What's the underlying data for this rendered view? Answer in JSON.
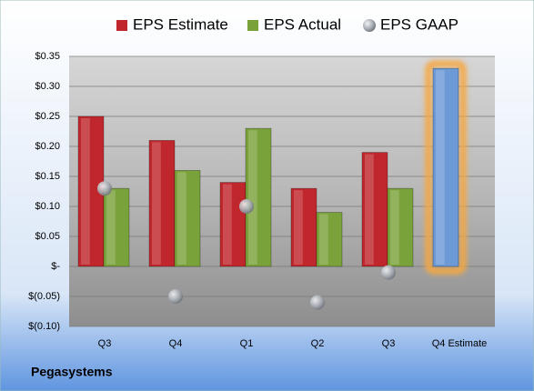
{
  "chart_data": {
    "type": "bar",
    "title": "Pegasystems",
    "categories": [
      "Q3",
      "Q4",
      "Q1",
      "Q2",
      "Q3",
      "Q4 Estimate"
    ],
    "series": [
      {
        "name": "EPS Estimate",
        "color": "#c0272d",
        "values": [
          0.25,
          0.21,
          0.14,
          0.13,
          0.19,
          0.33
        ],
        "colors": [
          "#c0272d",
          "#c0272d",
          "#c0272d",
          "#c0272d",
          "#c0272d",
          "#6b9ad6"
        ]
      },
      {
        "name": "EPS Actual",
        "color": "#7aa23a",
        "values": [
          0.13,
          0.16,
          0.23,
          0.09,
          0.13,
          null
        ]
      },
      {
        "name": "EPS GAAP",
        "color": "#a8adb5",
        "marker": "sphere",
        "values": [
          0.13,
          -0.05,
          0.1,
          -0.06,
          -0.01,
          null
        ]
      }
    ],
    "highlight_glow": "#f5a742",
    "ylim": [
      -0.1,
      0.35
    ],
    "yticks": [
      {
        "value": -0.1,
        "label": "$(0.10)"
      },
      {
        "value": -0.05,
        "label": "$(0.05)"
      },
      {
        "value": 0,
        "label": "$-"
      },
      {
        "value": 0.05,
        "label": "$0.05"
      },
      {
        "value": 0.1,
        "label": "$0.10"
      },
      {
        "value": 0.15,
        "label": "$0.15"
      },
      {
        "value": 0.2,
        "label": "$0.20"
      },
      {
        "value": 0.25,
        "label": "$0.25"
      },
      {
        "value": 0.3,
        "label": "$0.30"
      },
      {
        "value": 0.35,
        "label": "$0.35"
      }
    ],
    "grid": true,
    "legend": "top"
  }
}
